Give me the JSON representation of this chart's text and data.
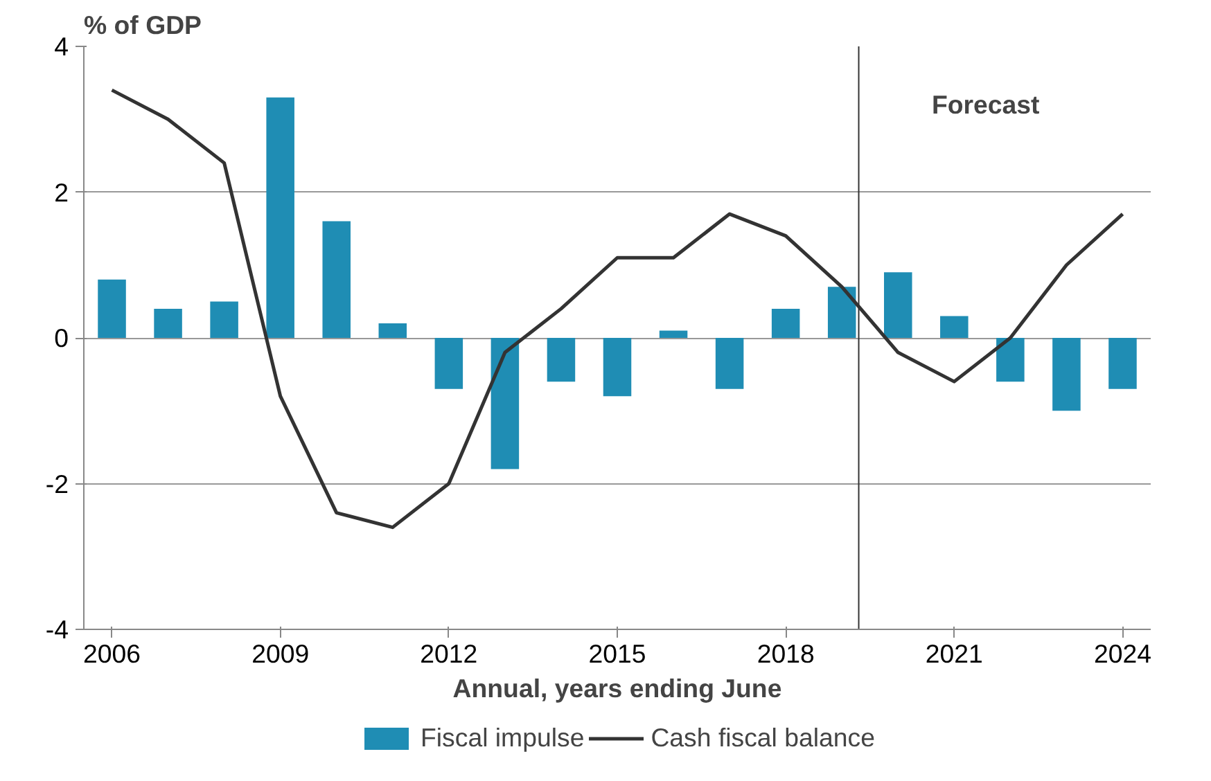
{
  "chart_data": {
    "type": "bar",
    "ylabel": "% of GDP",
    "xlabel": "Annual, years ending June",
    "x": [
      2006,
      2007,
      2008,
      2009,
      2010,
      2011,
      2012,
      2013,
      2014,
      2015,
      2016,
      2017,
      2018,
      2019,
      2020,
      2021,
      2022,
      2023,
      2024
    ],
    "xlim": [
      2005.5,
      2024.5
    ],
    "xticks": [
      2006,
      2009,
      2012,
      2015,
      2018,
      2021,
      2024
    ],
    "ylim": [
      -4,
      4
    ],
    "yticks": [
      -4,
      -2,
      0,
      2,
      4
    ],
    "series": [
      {
        "name": "Fiscal impulse",
        "color": "#1f8db4",
        "values": [
          0.8,
          0.4,
          0.5,
          3.3,
          1.6,
          0.2,
          -0.7,
          -1.8,
          -0.6,
          -0.8,
          0.1,
          -0.7,
          0.4,
          0.7,
          0.9,
          0.3,
          -0.6,
          -1.0,
          -0.7
        ]
      },
      {
        "name": "Cash fiscal balance",
        "type": "line",
        "color": "#333333",
        "values": [
          3.4,
          3.0,
          2.4,
          -0.8,
          -2.4,
          -2.6,
          -2.0,
          -0.2,
          0.4,
          1.1,
          1.1,
          1.7,
          1.4,
          0.7,
          -0.2,
          -0.6,
          0.0,
          1.0,
          1.7
        ]
      }
    ],
    "ref_lines": [
      {
        "axis": "x",
        "value": 2019.3,
        "label": "Forecast",
        "color": "#333333"
      }
    ],
    "grid": "y",
    "legend": "bottom",
    "marker": "none",
    "line_style": "solid"
  }
}
